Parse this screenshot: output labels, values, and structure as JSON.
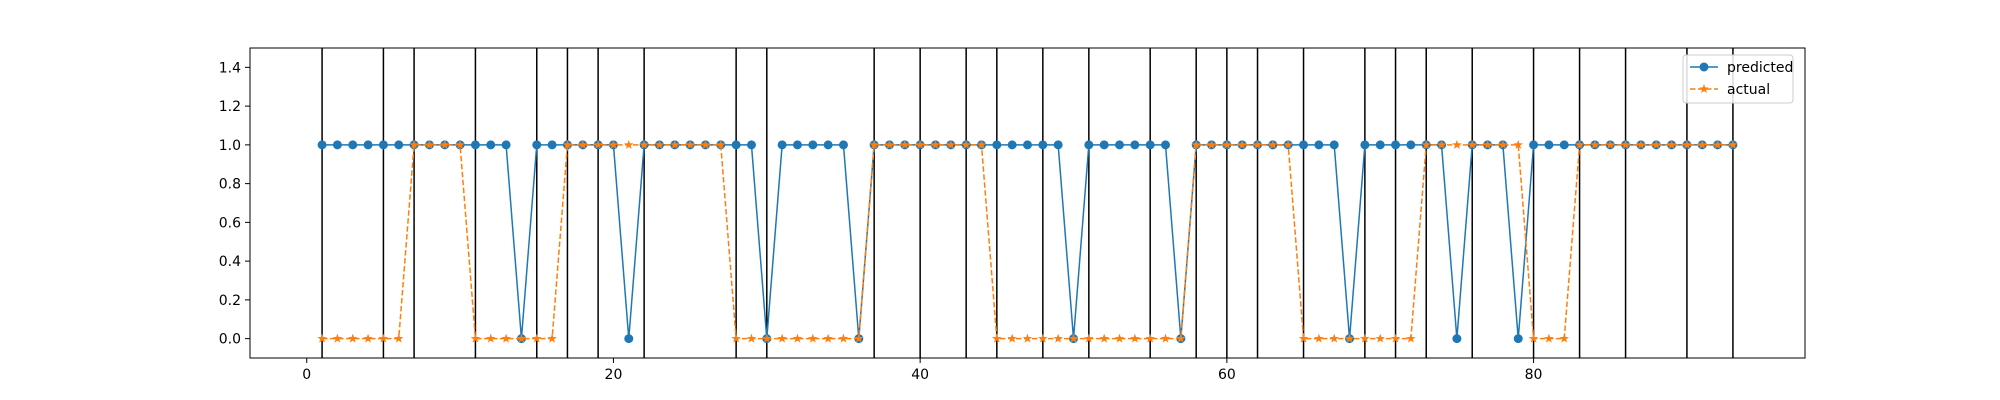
{
  "chart_data": {
    "type": "line",
    "title": "",
    "xlabel": "",
    "ylabel": "",
    "xlim": [
      -3.7,
      97.7
    ],
    "ylim": [
      -0.1,
      1.5
    ],
    "xticks": [
      0,
      20,
      40,
      60,
      80
    ],
    "yticks": [
      0.0,
      0.2,
      0.4,
      0.6,
      0.8,
      1.0,
      1.2,
      1.4
    ],
    "xtick_labels": [
      "0",
      "20",
      "40",
      "60",
      "80"
    ],
    "ytick_labels": [
      "0.0",
      "0.2",
      "0.4",
      "0.6",
      "0.8",
      "1.0",
      "1.2",
      "1.4"
    ],
    "grid": false,
    "legend": {
      "placement": "top-right",
      "entries": [
        "predicted",
        "actual"
      ]
    },
    "vertical_lines_x": [
      1,
      5,
      7,
      11,
      15,
      17,
      19,
      22,
      28,
      30,
      37,
      40,
      43,
      45,
      48,
      51,
      55,
      58,
      60,
      62,
      65,
      69,
      71,
      73,
      76,
      80,
      83,
      86,
      90,
      93
    ],
    "x": [
      1,
      2,
      3,
      4,
      5,
      6,
      7,
      8,
      9,
      10,
      11,
      12,
      13,
      14,
      15,
      16,
      17,
      18,
      19,
      20,
      21,
      22,
      23,
      24,
      25,
      26,
      27,
      28,
      29,
      30,
      31,
      32,
      33,
      34,
      35,
      36,
      37,
      38,
      39,
      40,
      41,
      42,
      43,
      44,
      45,
      46,
      47,
      48,
      49,
      50,
      51,
      52,
      53,
      54,
      55,
      56,
      57,
      58,
      59,
      60,
      61,
      62,
      63,
      64,
      65,
      66,
      67,
      68,
      69,
      70,
      71,
      72,
      73,
      74,
      75,
      76,
      77,
      78,
      79,
      80,
      81,
      82,
      83,
      84,
      85,
      86,
      87,
      88,
      89,
      90,
      91,
      92,
      93
    ],
    "series": [
      {
        "name": "predicted",
        "color": "#1f77b4",
        "linestyle": "solid",
        "marker": "circle",
        "values": [
          1,
          1,
          1,
          1,
          1,
          1,
          1,
          1,
          1,
          1,
          1,
          1,
          1,
          0,
          1,
          1,
          1,
          1,
          1,
          1,
          0,
          1,
          1,
          1,
          1,
          1,
          1,
          1,
          1,
          0,
          1,
          1,
          1,
          1,
          1,
          0,
          1,
          1,
          1,
          1,
          1,
          1,
          1,
          1,
          1,
          1,
          1,
          1,
          1,
          0,
          1,
          1,
          1,
          1,
          1,
          1,
          0,
          1,
          1,
          1,
          1,
          1,
          1,
          1,
          1,
          1,
          1,
          0,
          1,
          1,
          1,
          1,
          1,
          1,
          0,
          1,
          1,
          1,
          0,
          1,
          1,
          1,
          1,
          1,
          1,
          1,
          1,
          1,
          1,
          1,
          1,
          1,
          1
        ]
      },
      {
        "name": "actual",
        "color": "#ff7f0e",
        "linestyle": "dashed",
        "marker": "star",
        "values": [
          0,
          0,
          0,
          0,
          0,
          0,
          1,
          1,
          1,
          1,
          0,
          0,
          0,
          0,
          0,
          0,
          1,
          1,
          1,
          1,
          1,
          1,
          1,
          1,
          1,
          1,
          1,
          0,
          0,
          0,
          0,
          0,
          0,
          0,
          0,
          0,
          1,
          1,
          1,
          1,
          1,
          1,
          1,
          1,
          0,
          0,
          0,
          0,
          0,
          0,
          0,
          0,
          0,
          0,
          0,
          0,
          0,
          1,
          1,
          1,
          1,
          1,
          1,
          1,
          0,
          0,
          0,
          0,
          0,
          0,
          0,
          0,
          1,
          1,
          1,
          1,
          1,
          1,
          1,
          0,
          0,
          0,
          1,
          1,
          1,
          1,
          1,
          1,
          1,
          1,
          1,
          1,
          1
        ]
      }
    ]
  }
}
